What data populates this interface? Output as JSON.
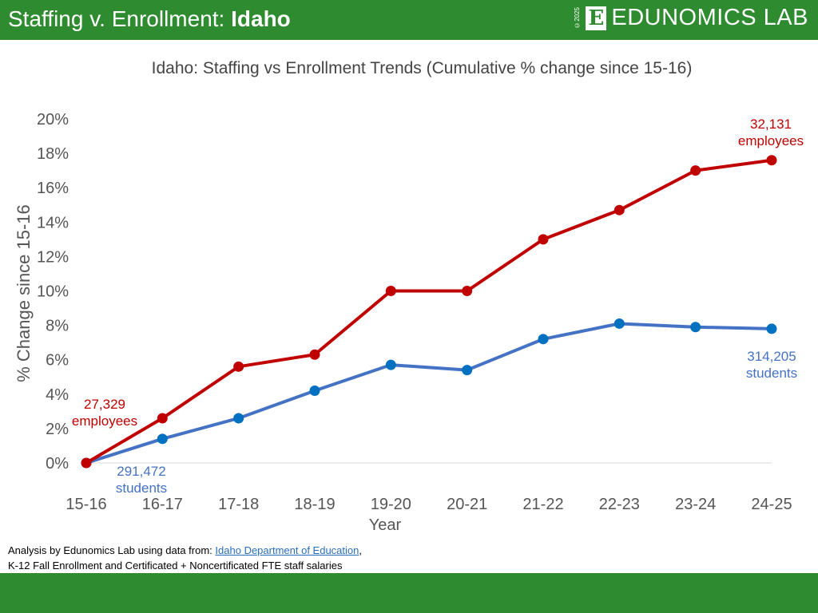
{
  "header": {
    "title_prefix": "Staffing v. Enrollment: ",
    "title_state": "Idaho",
    "logo_copyright": "©2025",
    "logo_letter": "E",
    "logo_text": "EDUNOMICS LAB"
  },
  "source": {
    "prefix": "Analysis by Edunomics Lab using data from: ",
    "link": "Idaho Department of Education",
    "suffix": ",",
    "line2": "K-12 Fall Enrollment and Certificated + Noncertificated FTE staff salaries"
  },
  "colors": {
    "brand_green": "#2e8b30",
    "staff": "#c00000",
    "enrollment": "#4472c4",
    "enrollment_marker": "#0070c0"
  },
  "chart_data": {
    "type": "line",
    "title": "Idaho: Staffing vs Enrollment Trends (Cumulative % change since 15-16)",
    "xlabel": "Year",
    "ylabel": "% Change since 15-16",
    "categories": [
      "15-16",
      "16-17",
      "17-18",
      "18-19",
      "19-20",
      "20-21",
      "21-22",
      "22-23",
      "23-24",
      "24-25"
    ],
    "ylim": [
      0,
      20
    ],
    "yticks": [
      "0%",
      "2%",
      "4%",
      "6%",
      "8%",
      "10%",
      "12%",
      "14%",
      "16%",
      "18%",
      "20%"
    ],
    "grid": false,
    "series": [
      {
        "key": "staff",
        "values": [
          0,
          2.6,
          5.6,
          6.3,
          10.0,
          10.0,
          13.0,
          14.7,
          17.0,
          17.6
        ]
      },
      {
        "key": "enrollment",
        "values": [
          0,
          1.4,
          2.6,
          4.2,
          5.7,
          5.4,
          7.2,
          8.1,
          7.9,
          7.8
        ]
      }
    ],
    "annotations": {
      "staff_start": [
        "27,329",
        "employees"
      ],
      "staff_end": [
        "32,131",
        "employees"
      ],
      "enroll_start": [
        "291,472",
        "students"
      ],
      "enroll_end": [
        "314,205",
        "students"
      ]
    }
  }
}
